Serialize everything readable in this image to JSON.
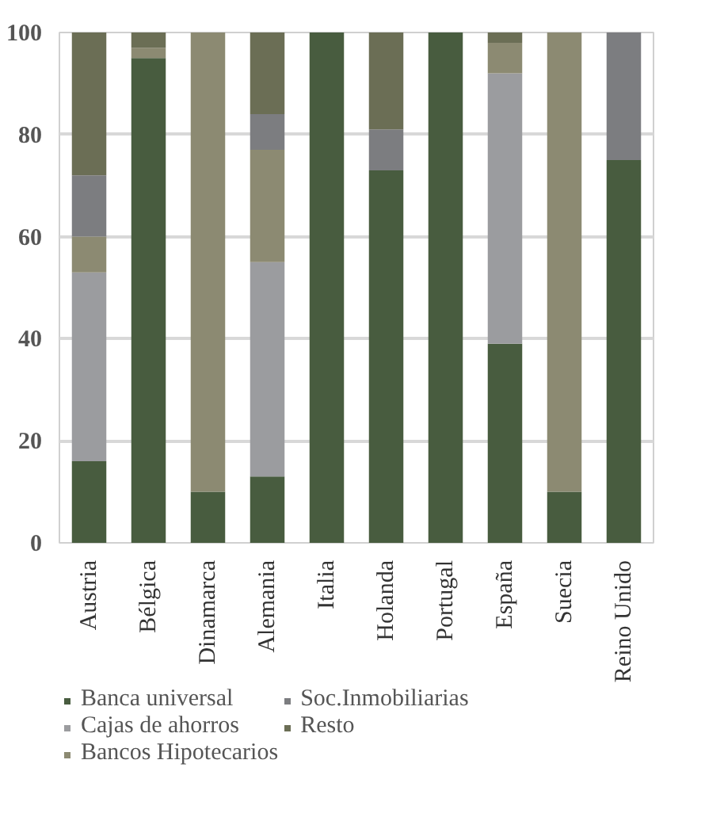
{
  "chart_data": {
    "type": "bar",
    "stacked": true,
    "categories": [
      "Austria",
      "Bélgica",
      "Dinamarca",
      "Alemania",
      "Italia",
      "Holanda",
      "Portugal",
      "España",
      "Suecia",
      "Reino Unido"
    ],
    "series": [
      {
        "name": "Banca universal",
        "color": "#485c3f",
        "values": [
          16,
          95,
          10,
          13,
          100,
          73,
          100,
          39,
          10,
          75
        ]
      },
      {
        "name": "Cajas de ahorros",
        "color": "#9b9c9f",
        "values": [
          37,
          0,
          0,
          42,
          0,
          0,
          0,
          53,
          0,
          0
        ]
      },
      {
        "name": "Bancos Hipotecarios",
        "color": "#8c8a72",
        "values": [
          7,
          2,
          90,
          22,
          0,
          0,
          0,
          6,
          90,
          0
        ]
      },
      {
        "name": "Soc.Inmobiliarias",
        "color": "#7c7d80",
        "values": [
          12,
          0,
          0,
          7,
          0,
          8,
          0,
          0,
          0,
          25
        ]
      },
      {
        "name": "Resto",
        "color": "#6b6e55",
        "values": [
          28,
          3,
          0,
          16,
          0,
          19,
          0,
          2,
          0,
          0
        ]
      }
    ],
    "ylim": [
      0,
      100
    ],
    "yticks": [
      0,
      20,
      40,
      60,
      80,
      100
    ],
    "grid": "y",
    "legend": "bottom"
  }
}
